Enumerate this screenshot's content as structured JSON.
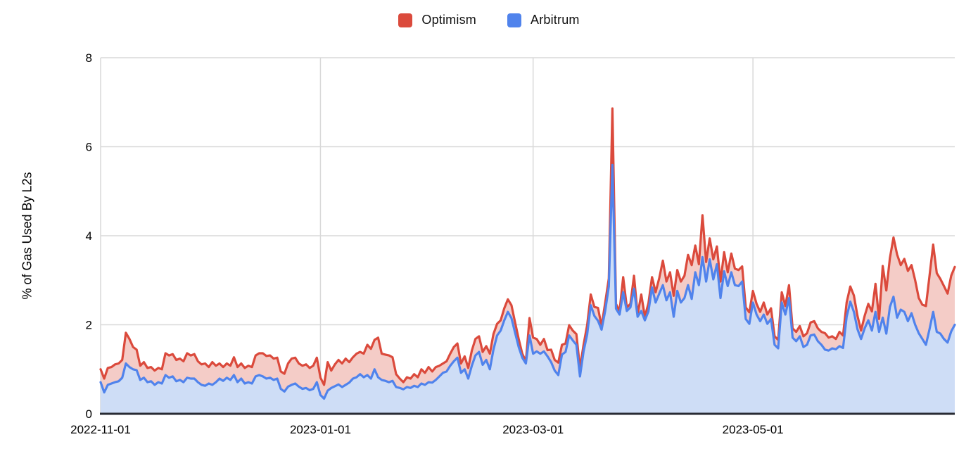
{
  "page": {
    "background": "#ffffff"
  },
  "legend": {
    "items": [
      {
        "label": "Optimism",
        "color": "#db4a3c"
      },
      {
        "label": "Arbitrum",
        "color": "#5083ec"
      }
    ]
  },
  "chart_data": {
    "type": "area",
    "title": "",
    "xlabel": "",
    "ylabel": "% of Gas Used By L2s",
    "ylim": [
      0,
      8
    ],
    "yticks": [
      0,
      2,
      4,
      6,
      8
    ],
    "x_start": "2022-11-01",
    "x_end": "2023-06-26",
    "x_sampling": "daily",
    "xticks": [
      {
        "label": "2022-11-01",
        "day": 0
      },
      {
        "label": "2023-01-01",
        "day": 61
      },
      {
        "label": "2023-03-01",
        "day": 120
      },
      {
        "label": "2023-05-01",
        "day": 181
      }
    ],
    "grid": true,
    "legend_position": "top-center",
    "colors": {
      "optimism_line": "#db4a3c",
      "optimism_fill": "#f4ccc7",
      "arbitrum_line": "#5083ec",
      "arbitrum_fill": "#ceddf6",
      "gridline": "#d9d9d9",
      "axis_line": "#282b33",
      "tick_text": "#000000"
    },
    "series": [
      {
        "name": "Optimism",
        "color": "#db4a3c",
        "fill": "#f4ccc7",
        "values": [
          1.0,
          0.79,
          1.03,
          1.05,
          1.11,
          1.13,
          1.21,
          1.82,
          1.68,
          1.5,
          1.44,
          1.08,
          1.16,
          1.03,
          1.05,
          0.97,
          1.03,
          1.0,
          1.36,
          1.31,
          1.34,
          1.21,
          1.24,
          1.18,
          1.36,
          1.31,
          1.34,
          1.18,
          1.11,
          1.13,
          1.05,
          1.16,
          1.08,
          1.13,
          1.05,
          1.13,
          1.08,
          1.27,
          1.05,
          1.13,
          1.03,
          1.08,
          1.05,
          1.31,
          1.36,
          1.36,
          1.3,
          1.31,
          1.24,
          1.26,
          0.95,
          0.9,
          1.13,
          1.24,
          1.26,
          1.13,
          1.08,
          1.11,
          1.03,
          1.08,
          1.26,
          0.81,
          0.65,
          1.16,
          0.97,
          1.11,
          1.21,
          1.13,
          1.24,
          1.16,
          1.27,
          1.35,
          1.39,
          1.35,
          1.55,
          1.46,
          1.66,
          1.71,
          1.35,
          1.33,
          1.31,
          1.27,
          0.89,
          0.79,
          0.71,
          0.82,
          0.79,
          0.89,
          0.82,
          1.0,
          0.92,
          1.05,
          0.95,
          1.05,
          1.08,
          1.13,
          1.18,
          1.35,
          1.5,
          1.58,
          1.13,
          1.29,
          1.03,
          1.42,
          1.68,
          1.74,
          1.39,
          1.52,
          1.35,
          1.79,
          2.02,
          2.1,
          2.37,
          2.57,
          2.44,
          2.05,
          1.68,
          1.35,
          1.18,
          2.15,
          1.71,
          1.68,
          1.55,
          1.68,
          1.43,
          1.44,
          1.21,
          1.15,
          1.55,
          1.58,
          1.99,
          1.87,
          1.79,
          1.03,
          1.55,
          1.99,
          2.68,
          2.4,
          2.38,
          1.97,
          2.49,
          3.04,
          6.86,
          2.47,
          2.31,
          3.07,
          2.39,
          2.47,
          3.1,
          2.23,
          2.68,
          2.18,
          2.48,
          3.07,
          2.73,
          3.05,
          3.44,
          2.97,
          3.18,
          2.65,
          3.23,
          2.97,
          3.1,
          3.57,
          3.34,
          3.78,
          3.36,
          4.46,
          3.41,
          3.94,
          3.47,
          3.76,
          2.97,
          3.63,
          3.18,
          3.6,
          3.26,
          3.23,
          3.31,
          2.39,
          2.28,
          2.76,
          2.47,
          2.29,
          2.5,
          2.23,
          2.37,
          1.74,
          1.66,
          2.73,
          2.42,
          2.89,
          1.92,
          1.84,
          1.97,
          1.74,
          1.81,
          2.05,
          2.08,
          1.92,
          1.84,
          1.81,
          1.71,
          1.74,
          1.68,
          1.84,
          1.76,
          2.5,
          2.86,
          2.66,
          2.2,
          1.87,
          2.2,
          2.47,
          2.3,
          2.92,
          2.13,
          3.32,
          2.77,
          3.5,
          3.96,
          3.58,
          3.34,
          3.48,
          3.21,
          3.34,
          3.0,
          2.6,
          2.45,
          2.42,
          3.1,
          3.8,
          3.16,
          3.03,
          2.87,
          2.7,
          3.1,
          3.3
        ]
      },
      {
        "name": "Arbitrum",
        "color": "#5083ec",
        "fill": "#ceddf6",
        "values": [
          0.71,
          0.48,
          0.65,
          0.68,
          0.71,
          0.73,
          0.81,
          1.13,
          1.05,
          1.0,
          0.98,
          0.76,
          0.81,
          0.71,
          0.73,
          0.65,
          0.71,
          0.68,
          0.87,
          0.81,
          0.84,
          0.73,
          0.76,
          0.71,
          0.81,
          0.79,
          0.79,
          0.71,
          0.65,
          0.63,
          0.68,
          0.65,
          0.71,
          0.79,
          0.74,
          0.81,
          0.76,
          0.87,
          0.71,
          0.79,
          0.68,
          0.71,
          0.68,
          0.84,
          0.87,
          0.84,
          0.79,
          0.81,
          0.76,
          0.79,
          0.56,
          0.5,
          0.61,
          0.65,
          0.68,
          0.61,
          0.56,
          0.58,
          0.53,
          0.56,
          0.71,
          0.42,
          0.34,
          0.52,
          0.58,
          0.62,
          0.66,
          0.6,
          0.65,
          0.7,
          0.79,
          0.82,
          0.89,
          0.82,
          0.87,
          0.79,
          1.0,
          0.82,
          0.76,
          0.74,
          0.71,
          0.74,
          0.6,
          0.58,
          0.55,
          0.6,
          0.58,
          0.63,
          0.6,
          0.68,
          0.65,
          0.71,
          0.7,
          0.76,
          0.84,
          0.92,
          0.95,
          1.08,
          1.18,
          1.26,
          0.92,
          1.0,
          0.79,
          1.08,
          1.31,
          1.39,
          1.1,
          1.21,
          1.0,
          1.44,
          1.76,
          1.87,
          2.1,
          2.29,
          2.15,
          1.82,
          1.5,
          1.26,
          1.13,
          1.76,
          1.35,
          1.4,
          1.35,
          1.4,
          1.29,
          1.16,
          0.97,
          0.87,
          1.33,
          1.39,
          1.76,
          1.65,
          1.55,
          0.84,
          1.4,
          1.78,
          2.44,
          2.2,
          2.09,
          1.89,
          2.31,
          2.86,
          5.59,
          2.36,
          2.23,
          2.73,
          2.31,
          2.39,
          2.81,
          2.18,
          2.31,
          2.1,
          2.3,
          2.84,
          2.5,
          2.7,
          2.89,
          2.55,
          2.73,
          2.18,
          2.76,
          2.5,
          2.6,
          2.89,
          2.58,
          3.18,
          2.89,
          3.52,
          2.97,
          3.47,
          3.02,
          3.36,
          2.6,
          3.2,
          2.87,
          3.18,
          2.89,
          2.87,
          2.97,
          2.13,
          2.02,
          2.5,
          2.23,
          2.08,
          2.23,
          2.02,
          2.13,
          1.55,
          1.47,
          2.5,
          2.23,
          2.6,
          1.71,
          1.63,
          1.74,
          1.5,
          1.55,
          1.76,
          1.78,
          1.63,
          1.55,
          1.44,
          1.42,
          1.47,
          1.45,
          1.52,
          1.48,
          2.18,
          2.52,
          2.29,
          1.9,
          1.68,
          1.92,
          2.1,
          1.87,
          2.29,
          1.84,
          2.16,
          1.8,
          2.4,
          2.63,
          2.16,
          2.34,
          2.29,
          2.08,
          2.26,
          2.0,
          1.81,
          1.68,
          1.55,
          1.9,
          2.29,
          1.84,
          1.8,
          1.68,
          1.6,
          1.85,
          2.0
        ]
      }
    ]
  }
}
